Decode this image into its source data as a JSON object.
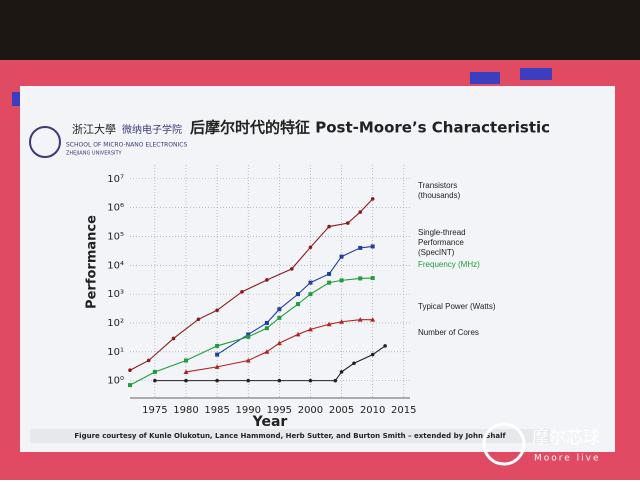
{
  "slide": {
    "university_cn": "浙江大學",
    "school_cn": "微纳电子学院",
    "school_en": "SCHOOL OF MICRO-NANO ELECTRONICS",
    "university_en": "ZHEJIANG UNIVERSITY"
  },
  "watermark": {
    "cn": "摩尔芯球",
    "en": "Moore live"
  },
  "chart_data": {
    "type": "scatter",
    "title": "后摩尔时代的特征 Post-Moore’s Characteristic",
    "caption": "Figure courtesy of Kunle Olukotun, Lance Hammond, Herb Sutter, and Burton Smith – extended by John Shalf",
    "x_label": "Year",
    "y_label": "Performance",
    "log_y": true,
    "grid": true,
    "xlim": [
      1971,
      2016
    ],
    "xticks": [
      1975,
      1980,
      1985,
      1990,
      1995,
      2000,
      2005,
      2010,
      2015
    ],
    "ylim": [
      0.25,
      30000000
    ],
    "yticks": [
      {
        "value": 1,
        "label": "10⁰"
      },
      {
        "value": 10,
        "label": "10¹"
      },
      {
        "value": 100,
        "label": "10²"
      },
      {
        "value": 1000,
        "label": "10³"
      },
      {
        "value": 10000,
        "label": "10⁴"
      },
      {
        "value": 100000,
        "label": "10⁵"
      },
      {
        "value": 1000000,
        "label": "10⁶"
      },
      {
        "value": 10000000,
        "label": "10⁷"
      }
    ],
    "series": [
      {
        "name": "Transistors (thousands)",
        "color": "#8b1a1a",
        "marker": "circle",
        "x": [
          1971,
          1974,
          1978,
          1982,
          1985,
          1989,
          1993,
          1997,
          2000,
          2003,
          2006,
          2008,
          2010
        ],
        "values": [
          2.3,
          5,
          29,
          134,
          275,
          1200,
          3100,
          7500,
          42000,
          220000,
          290000,
          700000,
          2000000
        ]
      },
      {
        "name": "Single-thread Performance (SpecINT)",
        "color": "#1f3fa0",
        "marker": "square",
        "x": [
          1985,
          1990,
          1993,
          1995,
          1998,
          2000,
          2003,
          2005,
          2008,
          2010
        ],
        "values": [
          8,
          40,
          100,
          300,
          1000,
          2500,
          5000,
          20000,
          40000,
          45000
        ]
      },
      {
        "name": "Frequency (MHz)",
        "color": "#1e9e3a",
        "marker": "square",
        "x": [
          1971,
          1975,
          1980,
          1985,
          1990,
          1993,
          1995,
          1998,
          2000,
          2003,
          2005,
          2008,
          2010
        ],
        "values": [
          0.7,
          2,
          5,
          16,
          33,
          66,
          150,
          450,
          1000,
          2500,
          3000,
          3500,
          3600
        ]
      },
      {
        "name": "Typical Power (Watts)",
        "color": "#b22222",
        "marker": "triangle",
        "x": [
          1980,
          1985,
          1990,
          1993,
          1995,
          1998,
          2000,
          2003,
          2005,
          2008,
          2010
        ],
        "values": [
          2,
          3,
          5,
          10,
          20,
          40,
          60,
          90,
          110,
          130,
          130
        ]
      },
      {
        "name": "Number of Cores",
        "color": "#222222",
        "marker": "circle",
        "x": [
          1975,
          1980,
          1985,
          1990,
          1995,
          2000,
          2004,
          2005,
          2007,
          2010,
          2012
        ],
        "values": [
          1,
          1,
          1,
          1,
          1,
          1,
          1,
          2,
          4,
          8,
          16
        ]
      }
    ]
  }
}
